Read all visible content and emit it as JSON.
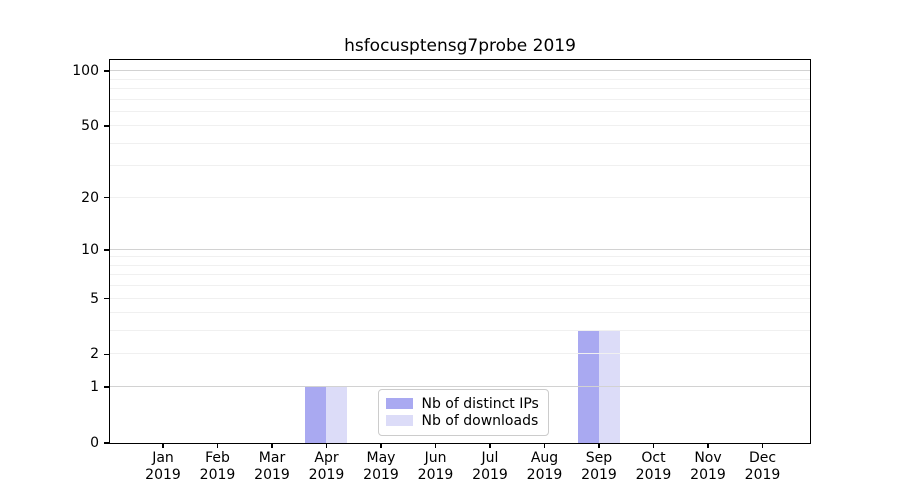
{
  "chart_data": {
    "type": "bar",
    "title": "hsfocusptensg7probe 2019",
    "categories": [
      "Jan",
      "Feb",
      "Mar",
      "Apr",
      "May",
      "Jun",
      "Jul",
      "Aug",
      "Sep",
      "Oct",
      "Nov",
      "Dec"
    ],
    "year_label": "2019",
    "series": [
      {
        "name": "Nb of distinct IPs",
        "color": "#a9a9f1",
        "values": [
          0,
          0,
          0,
          1,
          0,
          0,
          0,
          0,
          3,
          0,
          0,
          0
        ]
      },
      {
        "name": "Nb of downloads",
        "color": "#dcdcf8",
        "values": [
          0,
          0,
          0,
          1,
          0,
          0,
          0,
          0,
          3,
          0,
          0,
          0
        ]
      }
    ],
    "xlabel": "",
    "ylabel": "",
    "yscale": "log1p",
    "ylim": [
      0,
      115
    ],
    "yticks": [
      0,
      1,
      2,
      5,
      10,
      20,
      50,
      100
    ],
    "grid_major": [
      1,
      10,
      100
    ],
    "grid_minor": [
      2,
      3,
      4,
      5,
      6,
      7,
      8,
      9,
      20,
      30,
      40,
      50,
      60,
      70,
      80,
      90
    ],
    "grid": "horizontal",
    "legend_position": "lower center-left inside plot"
  },
  "colors": {
    "background": "#ffffff",
    "axis": "#000000",
    "grid_major": "#d2d2d2",
    "grid_minor": "#f0f0f0",
    "legend_border": "#cccccc",
    "text": "#000000"
  }
}
